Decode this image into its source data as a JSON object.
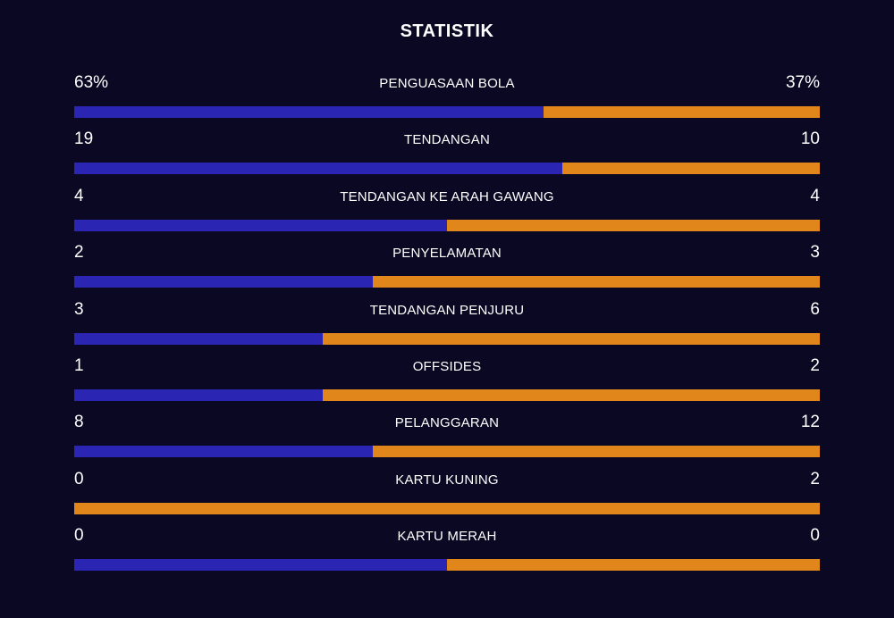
{
  "title": "STATISTIK",
  "colors": {
    "background": "#0a0822",
    "home_bar": "#2b25b3",
    "away_bar": "#e0861a",
    "text": "#ffffff"
  },
  "stats": [
    {
      "label": "PENGUASAAN BOLA",
      "left": "63%",
      "right": "37%",
      "left_share": 0.63
    },
    {
      "label": "TENDANGAN",
      "left": "19",
      "right": "10",
      "left_share": 0.655
    },
    {
      "label": "TENDANGAN KE ARAH GAWANG",
      "left": "4",
      "right": "4",
      "left_share": 0.5
    },
    {
      "label": "PENYELAMATAN",
      "left": "2",
      "right": "3",
      "left_share": 0.4
    },
    {
      "label": "TENDANGAN PENJURU",
      "left": "3",
      "right": "6",
      "left_share": 0.333
    },
    {
      "label": "OFFSIDES",
      "left": "1",
      "right": "2",
      "left_share": 0.333
    },
    {
      "label": "PELANGGARAN",
      "left": "8",
      "right": "12",
      "left_share": 0.4
    },
    {
      "label": "KARTU KUNING",
      "left": "0",
      "right": "2",
      "left_share": 0.0
    },
    {
      "label": "KARTU MERAH",
      "left": "0",
      "right": "0",
      "left_share": 0.5
    }
  ]
}
